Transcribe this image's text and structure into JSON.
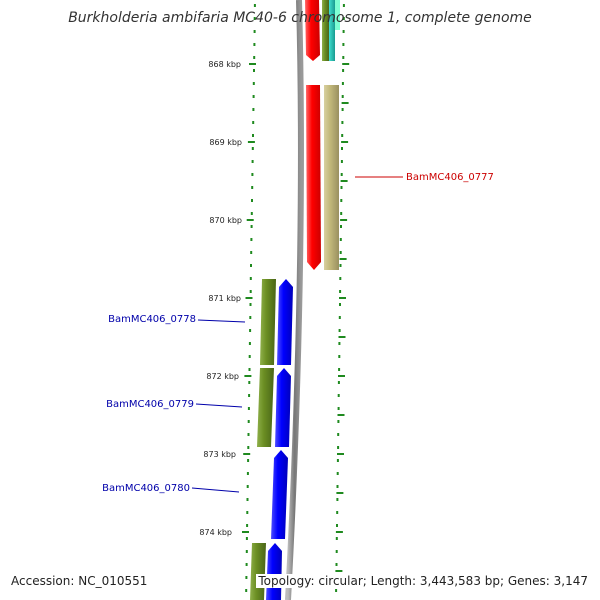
{
  "title": "Burkholderia ambifaria MC40-6 chromosome 1, complete genome",
  "accession": "Accession: NC_010551",
  "summary": "Topology: circular; Length: 3,443,583 bp; Genes: 3,147",
  "colors": {
    "backbone": "#8a8a8a",
    "tick_green": "#1f8a1f",
    "red_gene": "#ff0000",
    "tan_gene": "#c2b87a",
    "olive_gene": "#6b8e23",
    "blue_gene": "#0000ff",
    "teal_gene": "#20b2aa",
    "label_red": "#cc0000",
    "label_blue": "#0000aa"
  },
  "ticks": [
    {
      "label": "868 kbp"
    },
    {
      "label": "869 kbp"
    },
    {
      "label": "870 kbp"
    },
    {
      "label": "871 kbp"
    },
    {
      "label": "872 kbp"
    },
    {
      "label": "873 kbp"
    },
    {
      "label": "874 kbp"
    }
  ],
  "gene_labels": [
    {
      "label": "BamMC406_0777"
    },
    {
      "label": "BamMC406_0778"
    },
    {
      "label": "BamMC406_0779"
    },
    {
      "label": "BamMC406_0780"
    }
  ]
}
